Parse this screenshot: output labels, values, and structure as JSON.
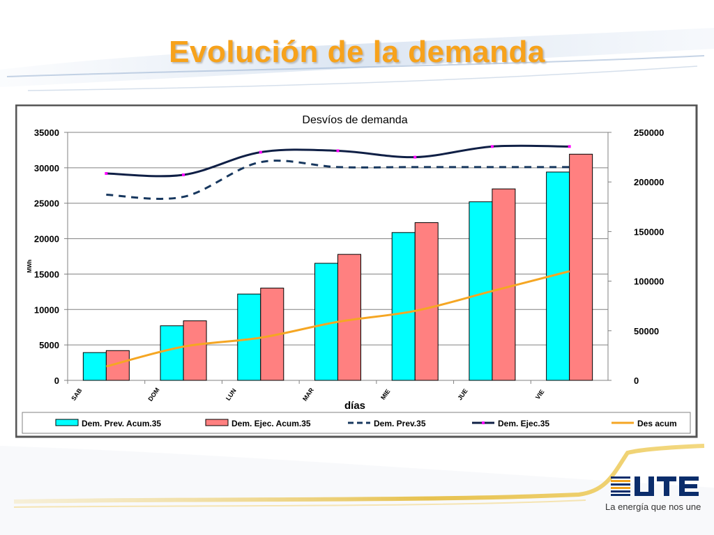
{
  "slide": {
    "title": "Evolución de la demanda",
    "tagline": "La energía que nos une",
    "logo_text": "UTE"
  },
  "colors": {
    "title": "#f7a21b",
    "prev_bar": "#00ffff",
    "ejec_bar": "#ff8080",
    "prev_line": "#17375e",
    "ejec_line": "#0f1f45",
    "marker": "#ff00ff",
    "acum_line": "#f5a623"
  },
  "chart_data": {
    "type": "bar",
    "title": "Desvíos de demanda",
    "xlabel": "días",
    "ylabel": "MWh",
    "categories": [
      "SAB",
      "DOM",
      "LUN",
      "MAR",
      "MIE",
      "JUE",
      "VIE"
    ],
    "y_left": {
      "min": 0,
      "max": 35000,
      "ticks": [
        0,
        5000,
        10000,
        15000,
        20000,
        25000,
        30000,
        35000
      ]
    },
    "y_right": {
      "min": 0,
      "max": 250000,
      "ticks": [
        0,
        50000,
        100000,
        150000,
        200000,
        250000
      ]
    },
    "grid": true,
    "legend_position": "bottom",
    "series": [
      {
        "name": "Dem. Prev. Acum.35",
        "kind": "bar",
        "axis": "right",
        "values": [
          28000,
          55000,
          87000,
          118000,
          149000,
          180000,
          210000
        ]
      },
      {
        "name": "Dem. Ejec. Acum.35",
        "kind": "bar",
        "axis": "right",
        "values": [
          30000,
          60000,
          93000,
          127000,
          159000,
          193000,
          228000
        ]
      },
      {
        "name": "Dem. Prev.35",
        "kind": "line",
        "style": "dashed",
        "axis": "left",
        "values": [
          26200,
          25900,
          30800,
          30100,
          30100,
          30100,
          30100
        ]
      },
      {
        "name": "Dem. Ejec.35",
        "kind": "line",
        "style": "solid",
        "axis": "left",
        "values": [
          29200,
          29000,
          32200,
          32400,
          31500,
          33000,
          33000
        ]
      },
      {
        "name": "Des acum",
        "kind": "line",
        "style": "solid",
        "axis": "right",
        "values": [
          14000,
          34000,
          43000,
          59000,
          70000,
          90000,
          110000
        ]
      }
    ]
  }
}
